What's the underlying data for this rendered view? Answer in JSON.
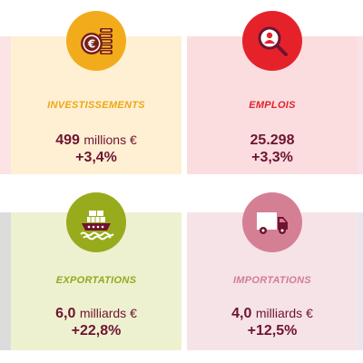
{
  "colors": {
    "investissements_bg": "#fff0d4",
    "investissements_icon": "#f2ac1b",
    "investissements_title": "#f0a512",
    "emplois_bg": "#fbdde0",
    "emplois_icon": "#e5222a",
    "emplois_title": "#e0222a",
    "exportations_bg": "#eef1d0",
    "exportations_icon": "#98ab1c",
    "exportations_title": "#95a81c",
    "importations_bg": "#f6e3e8",
    "importations_icon": "#d57f95",
    "importations_title": "#d27d93",
    "value_text": "#6e1430"
  },
  "cards": [
    {
      "title": "INVESTISSEMENTS",
      "icon": "euro-coins-icon",
      "value": "499",
      "unit": "millions €",
      "change": "+3,4%"
    },
    {
      "title": "EMPLOIS",
      "icon": "person-search-icon",
      "value": "25.298",
      "unit": "",
      "change": "+3,3%"
    },
    {
      "title": "EXPORTATIONS",
      "icon": "cargo-ship-icon",
      "value": "6,0",
      "unit": "milliards €",
      "change": "+22,8%"
    },
    {
      "title": "IMPORTATIONS",
      "icon": "delivery-truck-icon",
      "value": "4,0",
      "unit": "milliards €",
      "change": "+12,5%"
    }
  ]
}
